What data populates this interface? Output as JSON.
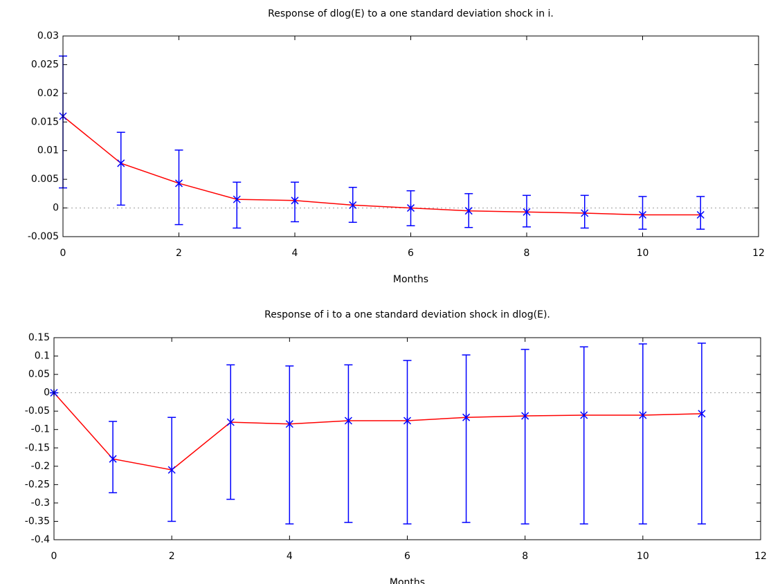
{
  "chart_data": [
    {
      "type": "errorbar-line",
      "title": "Response of dlog(E) to a one standard deviation shock in i.",
      "x_label": "Months",
      "x": [
        0,
        1,
        2,
        3,
        4,
        5,
        6,
        7,
        8,
        9,
        10,
        11
      ],
      "series": [
        {
          "color": "#ff0000",
          "marker_color": "#0000ff",
          "values": [
            0.016,
            0.0078,
            0.0043,
            0.0015,
            0.0013,
            0.0005,
            0,
            -0.0005,
            -0.0007,
            -0.0009,
            -0.0012,
            -0.0012
          ],
          "error_low": [
            0.0035,
            0.0005,
            -0.0029,
            -0.0035,
            -0.0024,
            -0.0025,
            -0.0031,
            -0.0034,
            -0.0033,
            -0.0035,
            -0.0037,
            -0.0037
          ],
          "error_high": [
            0.0265,
            0.0132,
            0.0101,
            0.0045,
            0.0045,
            0.0036,
            0.003,
            0.0025,
            0.0022,
            0.0022,
            0.002,
            0.002
          ]
        }
      ],
      "xlim": [
        0,
        12
      ],
      "xticks": [
        0,
        2,
        4,
        6,
        8,
        10,
        12
      ],
      "ylim": [
        -0.005,
        0.03
      ],
      "yticks": [
        -0.005,
        0,
        0.005,
        0.01,
        0.015,
        0.02,
        0.025,
        0.03
      ],
      "zero_line": true
    },
    {
      "type": "errorbar-line",
      "title": "Response of i to a one standard deviation shock in dlog(E).",
      "x_label": "Months",
      "x": [
        0,
        1,
        2,
        3,
        4,
        5,
        6,
        7,
        8,
        9,
        10,
        11
      ],
      "series": [
        {
          "color": "#ff0000",
          "marker_color": "#0000ff",
          "values": [
            0,
            -0.18,
            -0.21,
            -0.08,
            -0.085,
            -0.076,
            -0.076,
            -0.067,
            -0.063,
            -0.061,
            -0.061,
            -0.057
          ],
          "error_low": [
            0,
            -0.272,
            -0.35,
            -0.29,
            -0.357,
            -0.353,
            -0.357,
            -0.353,
            -0.357,
            -0.357,
            -0.357,
            -0.357
          ],
          "error_high": [
            0,
            -0.078,
            -0.067,
            0.076,
            0.073,
            0.076,
            0.088,
            0.103,
            0.118,
            0.125,
            0.133,
            0.135
          ]
        }
      ],
      "xlim": [
        0,
        12
      ],
      "xticks": [
        0,
        2,
        4,
        6,
        8,
        10,
        12
      ],
      "ylim": [
        -0.4,
        0.15
      ],
      "yticks": [
        -0.4,
        -0.35,
        -0.3,
        -0.25,
        -0.2,
        -0.15,
        -0.1,
        -0.05,
        0,
        0.05,
        0.1,
        0.15
      ],
      "zero_line": true
    }
  ]
}
